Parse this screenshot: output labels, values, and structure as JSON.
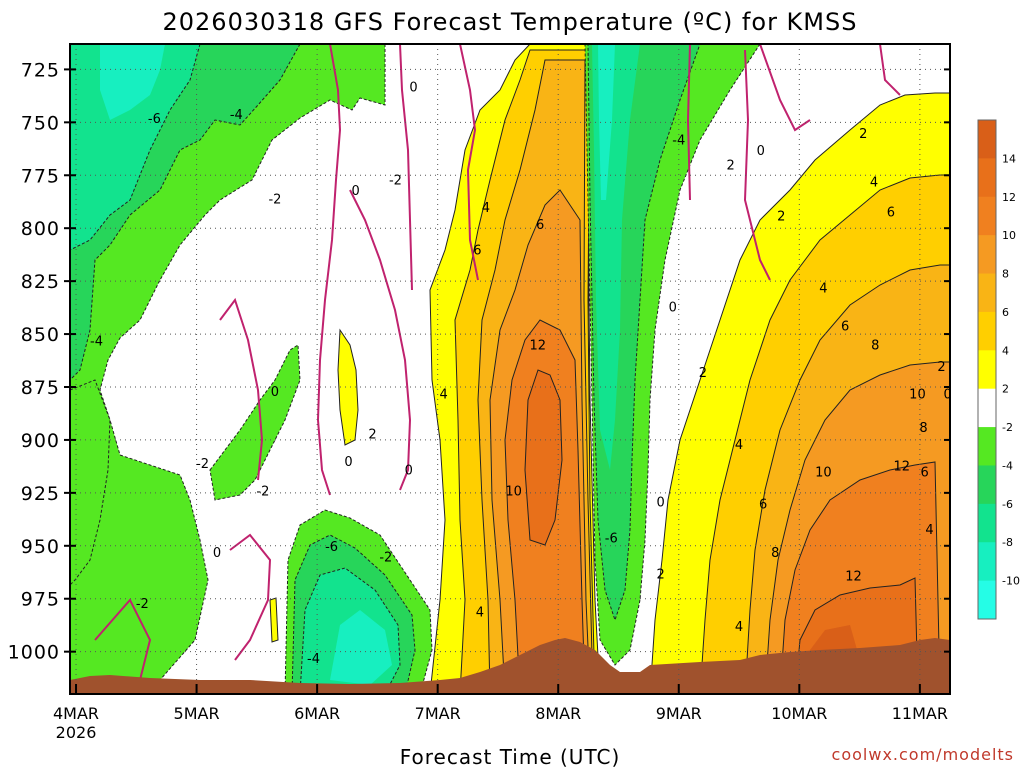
{
  "chart_data": {
    "type": "heatmap",
    "title": "2026030318 GFS Forecast Temperature (ºC) for KMSS",
    "xlabel": "Forecast Time (UTC)",
    "ylabel": "",
    "credit": "coolwx.com/modelts",
    "x_ticks": [
      {
        "label": "4MAR",
        "sub": "2026",
        "day": 0
      },
      {
        "label": "5MAR",
        "sub": "",
        "day": 1
      },
      {
        "label": "6MAR",
        "sub": "",
        "day": 2
      },
      {
        "label": "7MAR",
        "sub": "",
        "day": 3
      },
      {
        "label": "8MAR",
        "sub": "",
        "day": 4
      },
      {
        "label": "9MAR",
        "sub": "",
        "day": 5
      },
      {
        "label": "10MAR",
        "sub": "",
        "day": 6
      },
      {
        "label": "11MAR",
        "sub": "",
        "day": 7
      }
    ],
    "xlim_days": [
      -0.05,
      7.25
    ],
    "y_ticks": [
      725,
      750,
      775,
      800,
      825,
      850,
      875,
      900,
      925,
      950,
      975,
      1000
    ],
    "ylim_hpa": [
      713,
      1020
    ],
    "colorbar": {
      "labels": [
        "14",
        "12",
        "10",
        "8",
        "6",
        "4",
        "2",
        "-2",
        "-4",
        "-6",
        "-8",
        "-10"
      ],
      "colors": [
        "#d95f18",
        "#e8701a",
        "#f0801f",
        "#f59a22",
        "#f9b415",
        "#ffcf00",
        "#ffff00",
        "#ffffff",
        "#55e822",
        "#27d55a",
        "#12e38e",
        "#17efc0",
        "#25fde6"
      ]
    },
    "contour_labels": [
      {
        "t": "0",
        "day": 2.8,
        "p": 733
      },
      {
        "t": "-6",
        "day": 0.65,
        "p": 748
      },
      {
        "t": "-4",
        "day": 1.33,
        "p": 746
      },
      {
        "t": "-2",
        "day": 2.65,
        "p": 777
      },
      {
        "t": "-2",
        "day": 1.65,
        "p": 786
      },
      {
        "t": "0",
        "day": 2.32,
        "p": 782
      },
      {
        "t": "4",
        "day": 3.4,
        "p": 790
      },
      {
        "t": "6",
        "day": 3.33,
        "p": 810
      },
      {
        "t": "6",
        "day": 3.85,
        "p": 798
      },
      {
        "t": "-4",
        "day": 5.0,
        "p": 758
      },
      {
        "t": "0",
        "day": 5.68,
        "p": 763
      },
      {
        "t": "2",
        "day": 5.43,
        "p": 770
      },
      {
        "t": "2",
        "day": 6.53,
        "p": 755
      },
      {
        "t": "4",
        "day": 6.62,
        "p": 778
      },
      {
        "t": "6",
        "day": 6.76,
        "p": 792
      },
      {
        "t": "2",
        "day": 5.85,
        "p": 794
      },
      {
        "t": "4",
        "day": 6.2,
        "p": 828
      },
      {
        "t": "0",
        "day": 4.95,
        "p": 837
      },
      {
        "t": "6",
        "day": 6.38,
        "p": 846
      },
      {
        "t": "8",
        "day": 6.63,
        "p": 855
      },
      {
        "t": "12",
        "day": 3.83,
        "p": 855
      },
      {
        "t": "-4",
        "day": 0.17,
        "p": 853
      },
      {
        "t": "0",
        "day": 1.65,
        "p": 877
      },
      {
        "t": "2",
        "day": 5.2,
        "p": 868
      },
      {
        "t": "4",
        "day": 3.05,
        "p": 878
      },
      {
        "t": "2",
        "day": 7.18,
        "p": 865
      },
      {
        "t": "2",
        "day": 2.46,
        "p": 897
      },
      {
        "t": "10",
        "day": 6.98,
        "p": 878
      },
      {
        "t": "0",
        "day": 7.23,
        "p": 878
      },
      {
        "t": "8",
        "day": 7.03,
        "p": 894
      },
      {
        "t": "4",
        "day": 5.5,
        "p": 902
      },
      {
        "t": "12",
        "day": 6.85,
        "p": 912
      },
      {
        "t": "0",
        "day": 2.26,
        "p": 910
      },
      {
        "t": "0",
        "day": 2.76,
        "p": 914
      },
      {
        "t": "-2",
        "day": 1.05,
        "p": 911
      },
      {
        "t": "10",
        "day": 6.2,
        "p": 915
      },
      {
        "t": "6",
        "day": 7.04,
        "p": 915
      },
      {
        "t": "10",
        "day": 3.63,
        "p": 924
      },
      {
        "t": "-2",
        "day": 1.55,
        "p": 924
      },
      {
        "t": "0",
        "day": 4.85,
        "p": 929
      },
      {
        "t": "6",
        "day": 5.7,
        "p": 930
      },
      {
        "t": "4",
        "day": 7.08,
        "p": 942
      },
      {
        "t": "-6",
        "day": 4.44,
        "p": 946
      },
      {
        "t": "-6",
        "day": 2.12,
        "p": 950
      },
      {
        "t": "0",
        "day": 1.17,
        "p": 953
      },
      {
        "t": "-2",
        "day": 2.57,
        "p": 955
      },
      {
        "t": "8",
        "day": 5.8,
        "p": 953
      },
      {
        "t": "2",
        "day": 4.85,
        "p": 963
      },
      {
        "t": "12",
        "day": 6.45,
        "p": 964
      },
      {
        "t": "-2",
        "day": 0.55,
        "p": 977
      },
      {
        "t": "4",
        "day": 3.35,
        "p": 981
      },
      {
        "t": "4",
        "day": 5.5,
        "p": 988
      },
      {
        "t": "-4",
        "day": 1.97,
        "p": 1003
      }
    ]
  }
}
